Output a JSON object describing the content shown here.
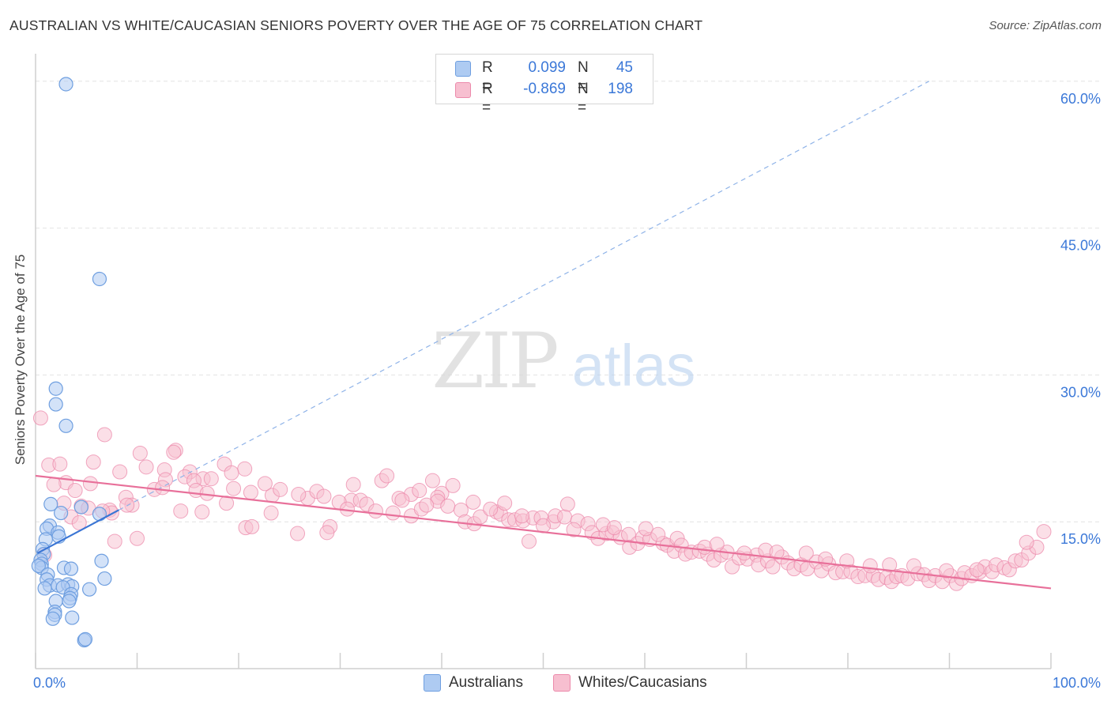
{
  "title": "AUSTRALIAN VS WHITE/CAUCASIAN SENIORS POVERTY OVER THE AGE OF 75 CORRELATION CHART",
  "source": "Source: ZipAtlas.com",
  "watermark": {
    "zip": "ZIP",
    "atlas": "atlas"
  },
  "colors": {
    "blue_fill": "#aecbf2",
    "blue_stroke": "#6f9fe0",
    "blue_line": "#3a75d4",
    "pink_fill": "#f7bfd0",
    "pink_stroke": "#ec8aab",
    "pink_line": "#e8709a",
    "tick_label": "#3b78d8",
    "grid": "#e2e2e2"
  },
  "legend": [
    {
      "r_label": "R =",
      "r_value": "0.099",
      "n_label": "N =",
      "n_value": "45"
    },
    {
      "r_label": "R =",
      "r_value": "-0.869",
      "n_label": "N =",
      "n_value": "198"
    }
  ],
  "bottom_legend": [
    "Australians",
    "Whites/Caucasians"
  ],
  "chart_data": {
    "type": "scatter",
    "title": "AUSTRALIAN VS WHITE/CAUCASIAN SENIORS POVERTY OVER THE AGE OF 75 CORRELATION CHART",
    "xlabel": "",
    "ylabel": "Seniors Poverty Over the Age of 75",
    "xlim": [
      0,
      100
    ],
    "ylim": [
      0,
      62
    ],
    "x_tick_labels": [
      "0.0%",
      "100.0%"
    ],
    "y_ticks": [
      15,
      30,
      45,
      60
    ],
    "y_tick_labels": [
      "15.0%",
      "30.0%",
      "45.0%",
      "60.0%"
    ],
    "grid": true,
    "legend_position": "top-center",
    "series": [
      {
        "name": "Australians",
        "r": 0.099,
        "n": 45,
        "trend_solid": [
          [
            0.2,
            11.8
          ],
          [
            8.2,
            16.2
          ]
        ],
        "trend_dashed": [
          [
            8.2,
            16.2
          ],
          [
            88.0,
            60.0
          ]
        ],
        "points": [
          [
            3.0,
            59.7
          ],
          [
            6.3,
            39.8
          ],
          [
            2.0,
            28.6
          ],
          [
            2.0,
            27.0
          ],
          [
            3.0,
            24.8
          ],
          [
            1.5,
            16.8
          ],
          [
            2.5,
            15.9
          ],
          [
            6.3,
            15.8
          ],
          [
            4.5,
            16.5
          ],
          [
            1.4,
            14.6
          ],
          [
            1.1,
            14.3
          ],
          [
            2.2,
            13.9
          ],
          [
            2.3,
            13.5
          ],
          [
            1.0,
            13.2
          ],
          [
            0.7,
            12.2
          ],
          [
            0.8,
            11.7
          ],
          [
            0.5,
            11.1
          ],
          [
            0.6,
            10.7
          ],
          [
            0.6,
            10.3
          ],
          [
            0.3,
            10.5
          ],
          [
            6.5,
            11.0
          ],
          [
            2.8,
            10.3
          ],
          [
            3.5,
            10.2
          ],
          [
            1.2,
            9.6
          ],
          [
            1.1,
            9.1
          ],
          [
            6.8,
            9.2
          ],
          [
            1.4,
            8.5
          ],
          [
            2.2,
            8.5
          ],
          [
            3.2,
            8.6
          ],
          [
            3.6,
            8.4
          ],
          [
            2.7,
            8.3
          ],
          [
            0.9,
            8.2
          ],
          [
            5.3,
            8.1
          ],
          [
            3.5,
            7.6
          ],
          [
            3.4,
            7.2
          ],
          [
            2.0,
            6.9
          ],
          [
            3.3,
            6.9
          ],
          [
            1.9,
            5.8
          ],
          [
            1.9,
            5.5
          ],
          [
            1.7,
            5.1
          ],
          [
            3.6,
            5.2
          ],
          [
            4.8,
            2.9
          ],
          [
            4.9,
            3.0
          ]
        ]
      },
      {
        "name": "Whites/Caucasians",
        "r": -0.869,
        "n": 198,
        "trend": [
          [
            0.0,
            19.7
          ],
          [
            100.0,
            8.2
          ]
        ],
        "points": [
          [
            0.5,
            25.6
          ],
          [
            6.8,
            23.9
          ],
          [
            13.8,
            22.3
          ],
          [
            10.3,
            22.0
          ],
          [
            13.6,
            22.1
          ],
          [
            1.3,
            20.8
          ],
          [
            2.4,
            20.9
          ],
          [
            5.7,
            21.1
          ],
          [
            10.9,
            20.6
          ],
          [
            18.6,
            20.9
          ],
          [
            20.6,
            20.4
          ],
          [
            12.7,
            20.3
          ],
          [
            15.2,
            20.1
          ],
          [
            19.3,
            20.0
          ],
          [
            8.3,
            20.1
          ],
          [
            14.7,
            19.6
          ],
          [
            16.5,
            19.4
          ],
          [
            17.3,
            19.4
          ],
          [
            12.8,
            19.3
          ],
          [
            15.6,
            19.2
          ],
          [
            3.0,
            19.0
          ],
          [
            5.4,
            18.9
          ],
          [
            1.8,
            18.8
          ],
          [
            3.9,
            18.2
          ],
          [
            8.9,
            17.5
          ],
          [
            9.5,
            16.7
          ],
          [
            9.0,
            16.7
          ],
          [
            4.5,
            16.6
          ],
          [
            7.3,
            16.2
          ],
          [
            16.4,
            16.0
          ],
          [
            14.3,
            16.1
          ],
          [
            3.5,
            15.5
          ],
          [
            7.5,
            15.9
          ],
          [
            10.0,
            13.3
          ],
          [
            7.8,
            13.0
          ],
          [
            20.7,
            14.4
          ],
          [
            21.3,
            14.5
          ],
          [
            23.2,
            15.9
          ],
          [
            25.8,
            13.8
          ],
          [
            29.0,
            14.5
          ],
          [
            28.7,
            13.9
          ],
          [
            18.8,
            16.9
          ],
          [
            19.5,
            18.4
          ],
          [
            23.3,
            17.7
          ],
          [
            26.8,
            17.4
          ],
          [
            31.1,
            17.2
          ],
          [
            29.9,
            17.0
          ],
          [
            31.3,
            18.8
          ],
          [
            32.0,
            17.2
          ],
          [
            34.1,
            19.2
          ],
          [
            34.6,
            19.7
          ],
          [
            35.8,
            17.4
          ],
          [
            37.0,
            17.8
          ],
          [
            37.8,
            18.2
          ],
          [
            39.1,
            19.2
          ],
          [
            40.0,
            17.9
          ],
          [
            39.6,
            17.5
          ],
          [
            35.2,
            15.9
          ],
          [
            37.0,
            15.6
          ],
          [
            38.0,
            16.3
          ],
          [
            39.6,
            17.1
          ],
          [
            40.6,
            16.6
          ],
          [
            41.9,
            16.2
          ],
          [
            42.3,
            15.0
          ],
          [
            43.2,
            14.8
          ],
          [
            43.8,
            15.5
          ],
          [
            45.4,
            16.0
          ],
          [
            45.8,
            15.8
          ],
          [
            46.6,
            15.2
          ],
          [
            47.2,
            15.2
          ],
          [
            48.0,
            15.1
          ],
          [
            49.0,
            15.4
          ],
          [
            49.8,
            15.4
          ],
          [
            51.0,
            15.0
          ],
          [
            51.2,
            15.6
          ],
          [
            52.1,
            15.5
          ],
          [
            52.4,
            16.8
          ],
          [
            53.4,
            15.1
          ],
          [
            54.4,
            14.8
          ],
          [
            54.8,
            13.9
          ],
          [
            55.4,
            13.3
          ],
          [
            56.2,
            13.8
          ],
          [
            56.8,
            13.9
          ],
          [
            57.6,
            13.4
          ],
          [
            58.4,
            13.7
          ],
          [
            58.5,
            12.4
          ],
          [
            59.3,
            12.8
          ],
          [
            59.8,
            13.4
          ],
          [
            60.5,
            13.2
          ],
          [
            61.8,
            12.8
          ],
          [
            62.2,
            12.6
          ],
          [
            62.9,
            12.0
          ],
          [
            63.2,
            13.3
          ],
          [
            63.6,
            12.6
          ],
          [
            64.0,
            11.7
          ],
          [
            64.6,
            11.9
          ],
          [
            65.4,
            12.0
          ],
          [
            66.2,
            11.7
          ],
          [
            66.8,
            11.1
          ],
          [
            67.5,
            11.6
          ],
          [
            68.1,
            11.9
          ],
          [
            68.6,
            10.4
          ],
          [
            69.3,
            11.3
          ],
          [
            70.1,
            11.2
          ],
          [
            71.0,
            11.6
          ],
          [
            71.2,
            10.6
          ],
          [
            72.1,
            11.0
          ],
          [
            72.6,
            10.4
          ],
          [
            73.5,
            11.4
          ],
          [
            74.1,
            10.8
          ],
          [
            74.7,
            10.2
          ],
          [
            75.4,
            10.6
          ],
          [
            76.0,
            10.2
          ],
          [
            76.9,
            10.9
          ],
          [
            77.4,
            10.0
          ],
          [
            78.1,
            10.7
          ],
          [
            78.8,
            9.8
          ],
          [
            79.5,
            9.9
          ],
          [
            80.3,
            9.9
          ],
          [
            81.0,
            9.4
          ],
          [
            81.7,
            9.5
          ],
          [
            82.5,
            9.5
          ],
          [
            83.0,
            9.1
          ],
          [
            83.8,
            9.3
          ],
          [
            84.3,
            8.9
          ],
          [
            84.8,
            9.4
          ],
          [
            85.3,
            9.5
          ],
          [
            85.9,
            9.2
          ],
          [
            86.9,
            9.7
          ],
          [
            87.5,
            9.6
          ],
          [
            88.0,
            9.0
          ],
          [
            88.6,
            9.5
          ],
          [
            89.3,
            8.9
          ],
          [
            90.1,
            9.5
          ],
          [
            90.7,
            8.7
          ],
          [
            91.2,
            9.2
          ],
          [
            91.5,
            9.8
          ],
          [
            92.2,
            9.5
          ],
          [
            93.0,
            9.9
          ],
          [
            93.5,
            10.4
          ],
          [
            94.2,
            9.9
          ],
          [
            94.6,
            10.6
          ],
          [
            95.4,
            10.3
          ],
          [
            95.9,
            10.1
          ],
          [
            96.5,
            11.0
          ],
          [
            97.1,
            11.1
          ],
          [
            97.8,
            11.8
          ],
          [
            98.6,
            12.4
          ],
          [
            99.3,
            14.0
          ],
          [
            97.6,
            12.9
          ],
          [
            0.9,
            11.6
          ],
          [
            2.8,
            16.9
          ],
          [
            4.3,
            14.9
          ],
          [
            5.2,
            16.4
          ],
          [
            6.6,
            16.1
          ],
          [
            11.7,
            18.3
          ],
          [
            12.5,
            18.5
          ],
          [
            15.8,
            18.2
          ],
          [
            16.9,
            17.9
          ],
          [
            21.2,
            18.0
          ],
          [
            22.6,
            18.9
          ],
          [
            24.1,
            18.3
          ],
          [
            25.9,
            17.8
          ],
          [
            27.7,
            18.1
          ],
          [
            28.4,
            17.6
          ],
          [
            30.7,
            16.3
          ],
          [
            32.6,
            16.8
          ],
          [
            33.5,
            16.1
          ],
          [
            36.1,
            17.2
          ],
          [
            38.5,
            16.7
          ],
          [
            41.1,
            18.7
          ],
          [
            43.1,
            17.0
          ],
          [
            44.8,
            16.3
          ],
          [
            46.2,
            16.9
          ],
          [
            47.9,
            15.6
          ],
          [
            48.6,
            13.0
          ],
          [
            50.0,
            14.6
          ],
          [
            53.0,
            14.2
          ],
          [
            55.9,
            14.7
          ],
          [
            57.0,
            14.4
          ],
          [
            60.1,
            14.3
          ],
          [
            61.3,
            13.7
          ],
          [
            65.9,
            12.4
          ],
          [
            67.1,
            12.7
          ],
          [
            69.8,
            11.8
          ],
          [
            71.9,
            12.1
          ],
          [
            73.0,
            11.9
          ],
          [
            75.9,
            11.8
          ],
          [
            77.8,
            11.2
          ],
          [
            79.9,
            11.0
          ],
          [
            82.2,
            10.5
          ],
          [
            84.1,
            10.6
          ],
          [
            86.5,
            10.5
          ],
          [
            89.7,
            10.0
          ],
          [
            92.7,
            10.1
          ]
        ]
      }
    ]
  }
}
